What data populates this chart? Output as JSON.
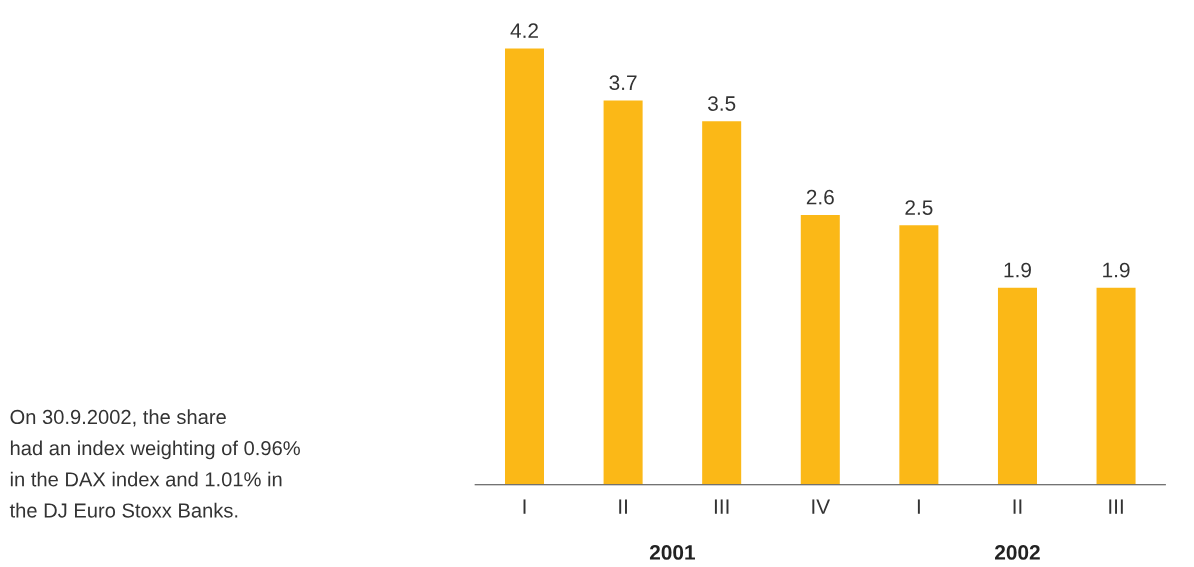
{
  "chart_data": {
    "type": "bar",
    "categories": [
      "I",
      "II",
      "III",
      "IV",
      "I",
      "II",
      "III"
    ],
    "values": [
      4.2,
      3.7,
      3.5,
      2.6,
      2.5,
      1.9,
      1.9
    ],
    "color": "#fbb817",
    "data_labels": true,
    "annotations": [
      "On 30.9.2002, the share\nhad an index weighting of 0.96%\nin the DAX index and 1.01% in\nthe DJ Euro Stoxx Banks.",
      "2001",
      "2002"
    ],
    "grid": false,
    "legend": false
  }
}
